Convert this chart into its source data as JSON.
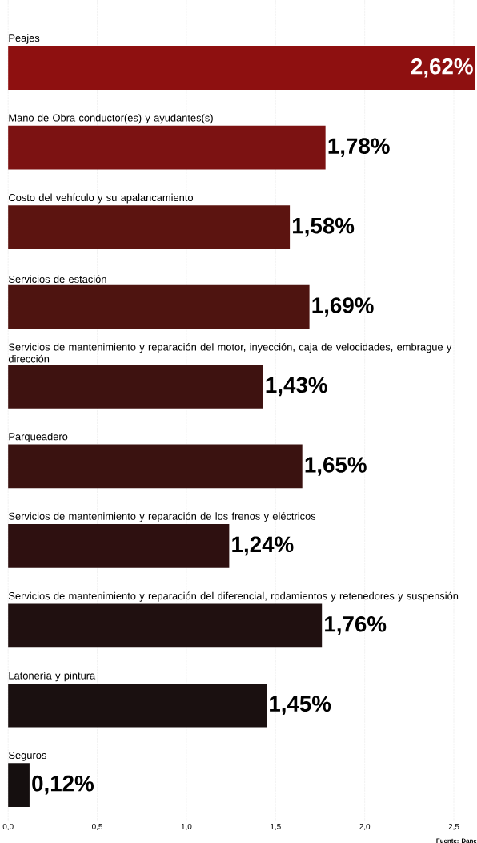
{
  "chart_data": {
    "type": "bar",
    "orientation": "horizontal",
    "categories": [
      "Peajes",
      "Mano de Obra conductor(es) y ayudantes(s)",
      "Costo del vehículo y su apalancamiento",
      "Servicios de estación",
      "Servicios de mantenimiento y reparación del motor, inyección, caja de velocidades, embrague y dirección",
      "Parqueadero",
      "Servicios de mantenimiento y reparación de los frenos y eléctricos",
      "Servicios de mantenimiento y reparación del diferencial, rodamientos y retenedores y suspensión",
      "Latonería y pintura",
      "Seguros"
    ],
    "values": [
      2.62,
      1.78,
      1.58,
      1.69,
      1.43,
      1.65,
      1.24,
      1.76,
      1.45,
      0.12
    ],
    "value_labels": [
      "2,62%",
      "1,78%",
      "1,58%",
      "1,69%",
      "1,43%",
      "1,65%",
      "1,24%",
      "1,76%",
      "1,45%",
      "0,12%"
    ],
    "colors": [
      "#8e1010",
      "#7c1212",
      "#5c1410",
      "#4e1410",
      "#3e1210",
      "#3a1210",
      "#2e1010",
      "#201010",
      "#1a1010",
      "#150f0f"
    ],
    "xlim": [
      0,
      2.63
    ],
    "xticks": [
      {
        "value": 0,
        "label": "0,0"
      },
      {
        "value": 0.5,
        "label": "0,5"
      },
      {
        "value": 1.0,
        "label": "1,0"
      },
      {
        "value": 1.5,
        "label": "1,5"
      },
      {
        "value": 2.0,
        "label": "2,0"
      },
      {
        "value": 2.5,
        "label": "2,5"
      }
    ],
    "grid": "x",
    "annotations": [
      "Fuente: Dane"
    ]
  }
}
